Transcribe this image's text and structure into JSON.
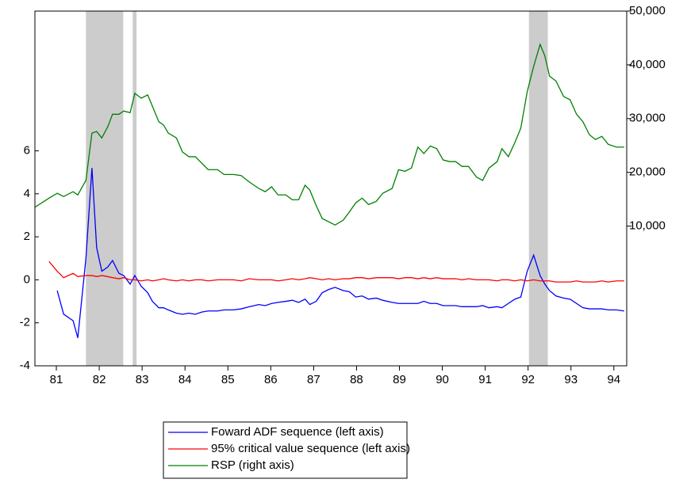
{
  "chart_data": {
    "type": "line",
    "x": [
      1981.0,
      1981.33,
      1981.52,
      1981.67,
      1981.89,
      1982.0,
      1982.19,
      1982.33,
      1982.44,
      1982.56,
      1982.7,
      1982.81,
      1982.96,
      1983.07,
      1983.22,
      1983.33,
      1983.48,
      1983.63,
      1983.74,
      1983.89,
      1984.0,
      1984.11,
      1984.3,
      1984.44,
      1984.59,
      1984.74,
      1984.89,
      1985.04,
      1985.26,
      1985.41,
      1985.63,
      1985.81,
      1986.0,
      1986.22,
      1986.37,
      1986.52,
      1986.67,
      1986.85,
      1987.0,
      1987.15,
      1987.3,
      1987.41,
      1987.56,
      1987.7,
      1987.85,
      1988.0,
      1988.19,
      1988.33,
      1988.48,
      1988.63,
      1988.78,
      1988.96,
      1989.11,
      1989.33,
      1989.48,
      1989.63,
      1989.78,
      1989.93,
      1990.07,
      1990.22,
      1990.37,
      1990.52,
      1990.67,
      1990.81,
      1990.96,
      1991.11,
      1991.3,
      1991.44,
      1991.59,
      1991.78,
      1991.89,
      1992.04,
      1992.19,
      1992.33,
      1992.48,
      1992.63,
      1992.78,
      1992.89,
      1993.0,
      1993.15,
      1993.33,
      1993.48,
      1993.63,
      1993.78,
      1993.93,
      1994.07,
      1994.22,
      1994.37,
      1994.56,
      1994.74
    ],
    "series": [
      {
        "name": "Foward ADF sequence (left axis)",
        "color": "#0000ff",
        "values": [
          null,
          null,
          -0.5,
          -1.6,
          -1.9,
          -2.7,
          1.0,
          5.2,
          1.5,
          0.4,
          0.6,
          0.9,
          0.3,
          0.2,
          -0.2,
          0.2,
          -0.3,
          -0.6,
          -1.0,
          -1.3,
          -1.3,
          -1.4,
          -1.55,
          -1.6,
          -1.55,
          -1.6,
          -1.5,
          -1.45,
          -1.45,
          -1.4,
          -1.4,
          -1.35,
          -1.25,
          -1.15,
          -1.2,
          -1.1,
          -1.05,
          -1.0,
          -0.95,
          -1.05,
          -0.9,
          -1.15,
          -1.0,
          -0.6,
          -0.45,
          -0.35,
          -0.5,
          -0.55,
          -0.8,
          -0.75,
          -0.9,
          -0.85,
          -0.95,
          -1.05,
          -1.1,
          -1.1,
          -1.1,
          -1.1,
          -1.0,
          -1.1,
          -1.1,
          -1.2,
          -1.2,
          -1.2,
          -1.25,
          -1.25,
          -1.25,
          -1.2,
          -1.3,
          -1.25,
          -1.3,
          -1.1,
          -0.9,
          -0.8,
          0.4,
          1.15,
          0.2,
          -0.2,
          -0.5,
          -0.75,
          -0.85,
          -0.9,
          -1.1,
          -1.3,
          -1.35,
          -1.35,
          -1.35,
          -1.4,
          -1.4,
          -1.45
        ]
      },
      {
        "name": "95% critical value sequence (left axis)",
        "color": "#ff0000",
        "values": [
          null,
          0.85,
          0.4,
          0.1,
          0.3,
          0.15,
          0.2,
          0.2,
          0.15,
          0.2,
          0.15,
          0.1,
          0.05,
          0.1,
          0.0,
          0.0,
          -0.05,
          0.0,
          -0.05,
          0.0,
          0.05,
          0.0,
          -0.05,
          0.0,
          -0.05,
          0.0,
          0.0,
          -0.05,
          0.0,
          0.0,
          0.0,
          -0.05,
          0.05,
          0.0,
          0.0,
          0.0,
          -0.05,
          0.0,
          0.05,
          0.0,
          0.05,
          0.1,
          0.05,
          0.0,
          0.05,
          0.0,
          0.05,
          0.05,
          0.1,
          0.1,
          0.05,
          0.1,
          0.1,
          0.1,
          0.05,
          0.1,
          0.1,
          0.05,
          0.1,
          0.05,
          0.1,
          0.05,
          0.05,
          0.05,
          0.0,
          0.05,
          0.0,
          0.0,
          0.0,
          -0.05,
          0.0,
          0.0,
          -0.05,
          0.0,
          -0.05,
          0.0,
          -0.05,
          -0.05,
          -0.05,
          -0.1,
          -0.1,
          -0.1,
          -0.05,
          -0.1,
          -0.1,
          -0.1,
          -0.05,
          -0.1,
          -0.05,
          -0.05
        ]
      },
      {
        "name": "RSP (right axis)",
        "color": "#008000",
        "axis": "y2",
        "values": [
          13500,
          15200,
          16100,
          15500,
          16400,
          15800,
          18500,
          27300,
          27600,
          26400,
          28500,
          30800,
          30800,
          31400,
          31100,
          34700,
          33800,
          34400,
          32300,
          29400,
          28800,
          27300,
          26400,
          23800,
          22900,
          22900,
          21700,
          20500,
          20500,
          19600,
          19600,
          19400,
          18200,
          17000,
          16400,
          17300,
          15800,
          15800,
          14900,
          14900,
          17600,
          16700,
          13800,
          11400,
          10800,
          10200,
          11100,
          12600,
          14300,
          15200,
          14000,
          14600,
          16100,
          17000,
          20500,
          20200,
          20800,
          24700,
          23500,
          24900,
          24400,
          22300,
          22000,
          22000,
          21100,
          21100,
          19100,
          18500,
          20800,
          22000,
          24400,
          22900,
          25500,
          28200,
          35000,
          39700,
          43800,
          41700,
          37900,
          37000,
          34100,
          33500,
          30800,
          29400,
          27000,
          26100,
          26700,
          25200,
          24700,
          24700
        ]
      }
    ],
    "shaded": [
      [
        1982.19,
        1983.06
      ],
      [
        1983.28,
        1983.37
      ],
      [
        1992.52,
        1992.96
      ]
    ],
    "shade_color": "#cccccc",
    "xlim": [
      1981,
      1994.8
    ],
    "xticks": [
      {
        "value": 1981.5,
        "label": "81"
      },
      {
        "value": 1982.5,
        "label": "82"
      },
      {
        "value": 1983.5,
        "label": "83"
      },
      {
        "value": 1984.5,
        "label": "84"
      },
      {
        "value": 1985.5,
        "label": "85"
      },
      {
        "value": 1986.5,
        "label": "86"
      },
      {
        "value": 1987.5,
        "label": "87"
      },
      {
        "value": 1988.5,
        "label": "88"
      },
      {
        "value": 1989.5,
        "label": "89"
      },
      {
        "value": 1990.5,
        "label": "90"
      },
      {
        "value": 1991.5,
        "label": "91"
      },
      {
        "value": 1992.5,
        "label": "92"
      },
      {
        "value": 1993.5,
        "label": "93"
      },
      {
        "value": 1994.5,
        "label": "94"
      }
    ],
    "ylim": [
      -4,
      12.5
    ],
    "yticks": [
      -4,
      -2,
      0,
      2,
      4,
      6
    ],
    "y2lim": [
      -16000,
      50000
    ],
    "y2ticks": [
      {
        "value": 10000,
        "label": "10,000"
      },
      {
        "value": 20000,
        "label": "20,000"
      },
      {
        "value": 30000,
        "label": "30,000"
      },
      {
        "value": 40000,
        "label": "40,000"
      },
      {
        "value": 50000,
        "label": "50,000"
      }
    ],
    "legend": "bottom-center"
  }
}
